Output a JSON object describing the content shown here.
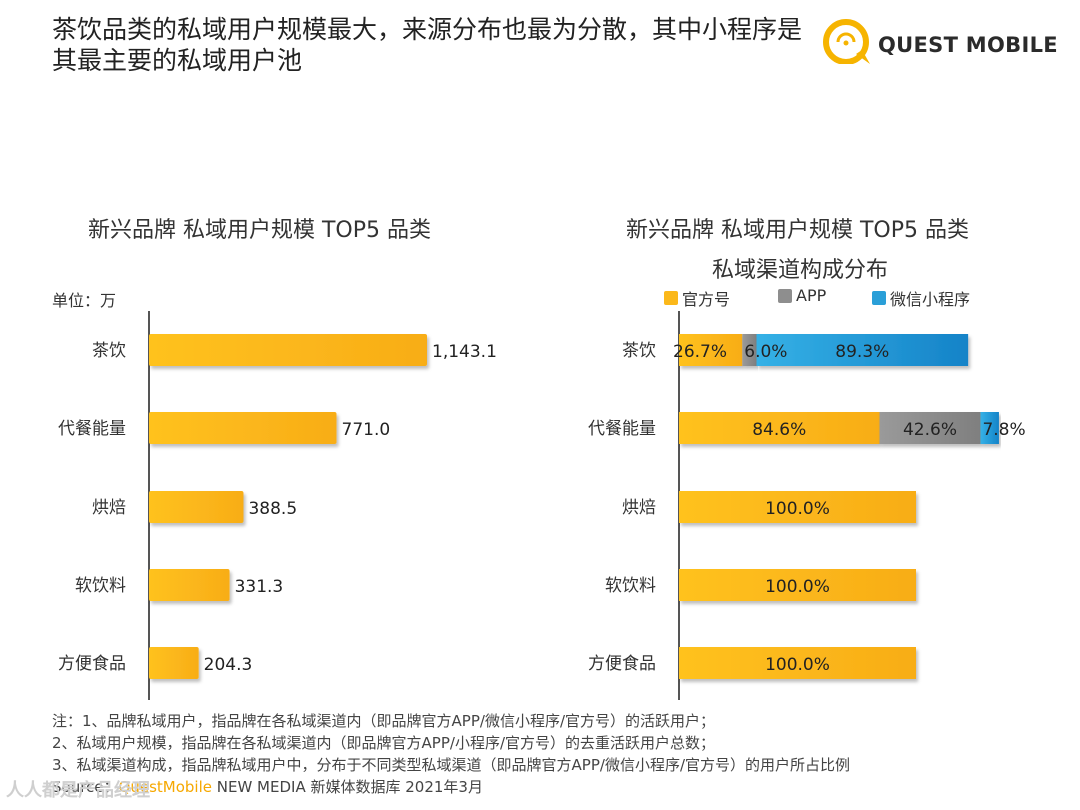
{
  "title": "茶饮品类的私域用户规模最大，来源分布也最为分散，其中小程序是其最主要的私域用户池",
  "logo": {
    "text": "QUEST MOBILE"
  },
  "colors": {
    "official": "#fbb81a",
    "app": "#8e8e8e",
    "miniprogram": "#2a9fd8",
    "axis": "#555555"
  },
  "watermark": "人人都是产品经理",
  "left_chart": {
    "title": "新兴品牌 私域用户规模 TOP5 品类",
    "unit": "单位：万"
  },
  "right_chart": {
    "title_line1": "新兴品牌 私域用户规模 TOP5 品类",
    "title_line2": "私域渠道构成分布",
    "legend": [
      "官方号",
      "APP",
      "微信小程序"
    ]
  },
  "notes": [
    "注：1、品牌私域用户，指品牌在各私域渠道内（即品牌官方APP/微信小程序/官方号）的活跃用户；",
    "2、私域用户规模，指品牌在各私域渠道内（即品牌官方APP/小程序/官方号）的去重活跃用户总数；",
    "3、私域渠道构成，指品牌私域用户中，分布于不同类型私域渠道（即品牌官方APP/微信小程序/官方号）的用户所占比例"
  ],
  "source": {
    "label": "Source：",
    "brand": "QuestMobile",
    "rest": " NEW MEDIA 新媒体数据库 2021年3月"
  },
  "chart_data": [
    {
      "type": "bar",
      "orientation": "horizontal",
      "title": "新兴品牌 私域用户规模 TOP5 品类",
      "unit": "万",
      "categories": [
        "茶饮",
        "代餐能量",
        "烘焙",
        "软饮料",
        "方便食品"
      ],
      "values": [
        1143.1,
        771.0,
        388.5,
        331.3,
        204.3
      ],
      "labels": [
        "1,143.1",
        "771.0",
        "388.5",
        "331.3",
        "204.3"
      ],
      "xlim": [
        0,
        1143.1
      ]
    },
    {
      "type": "bar",
      "orientation": "horizontal",
      "stacked": true,
      "title": "新兴品牌 私域用户规模 TOP5 品类 私域渠道构成分布",
      "categories": [
        "茶饮",
        "代餐能量",
        "烘焙",
        "软饮料",
        "方便食品"
      ],
      "series": [
        {
          "name": "官方号",
          "values": [
            26.7,
            84.6,
            100.0,
            100.0,
            100.0
          ]
        },
        {
          "name": "APP",
          "values": [
            6.0,
            42.6,
            0,
            0,
            0
          ]
        },
        {
          "name": "微信小程序",
          "values": [
            89.3,
            7.8,
            0,
            0,
            0
          ]
        }
      ],
      "legend_position": "top"
    }
  ]
}
